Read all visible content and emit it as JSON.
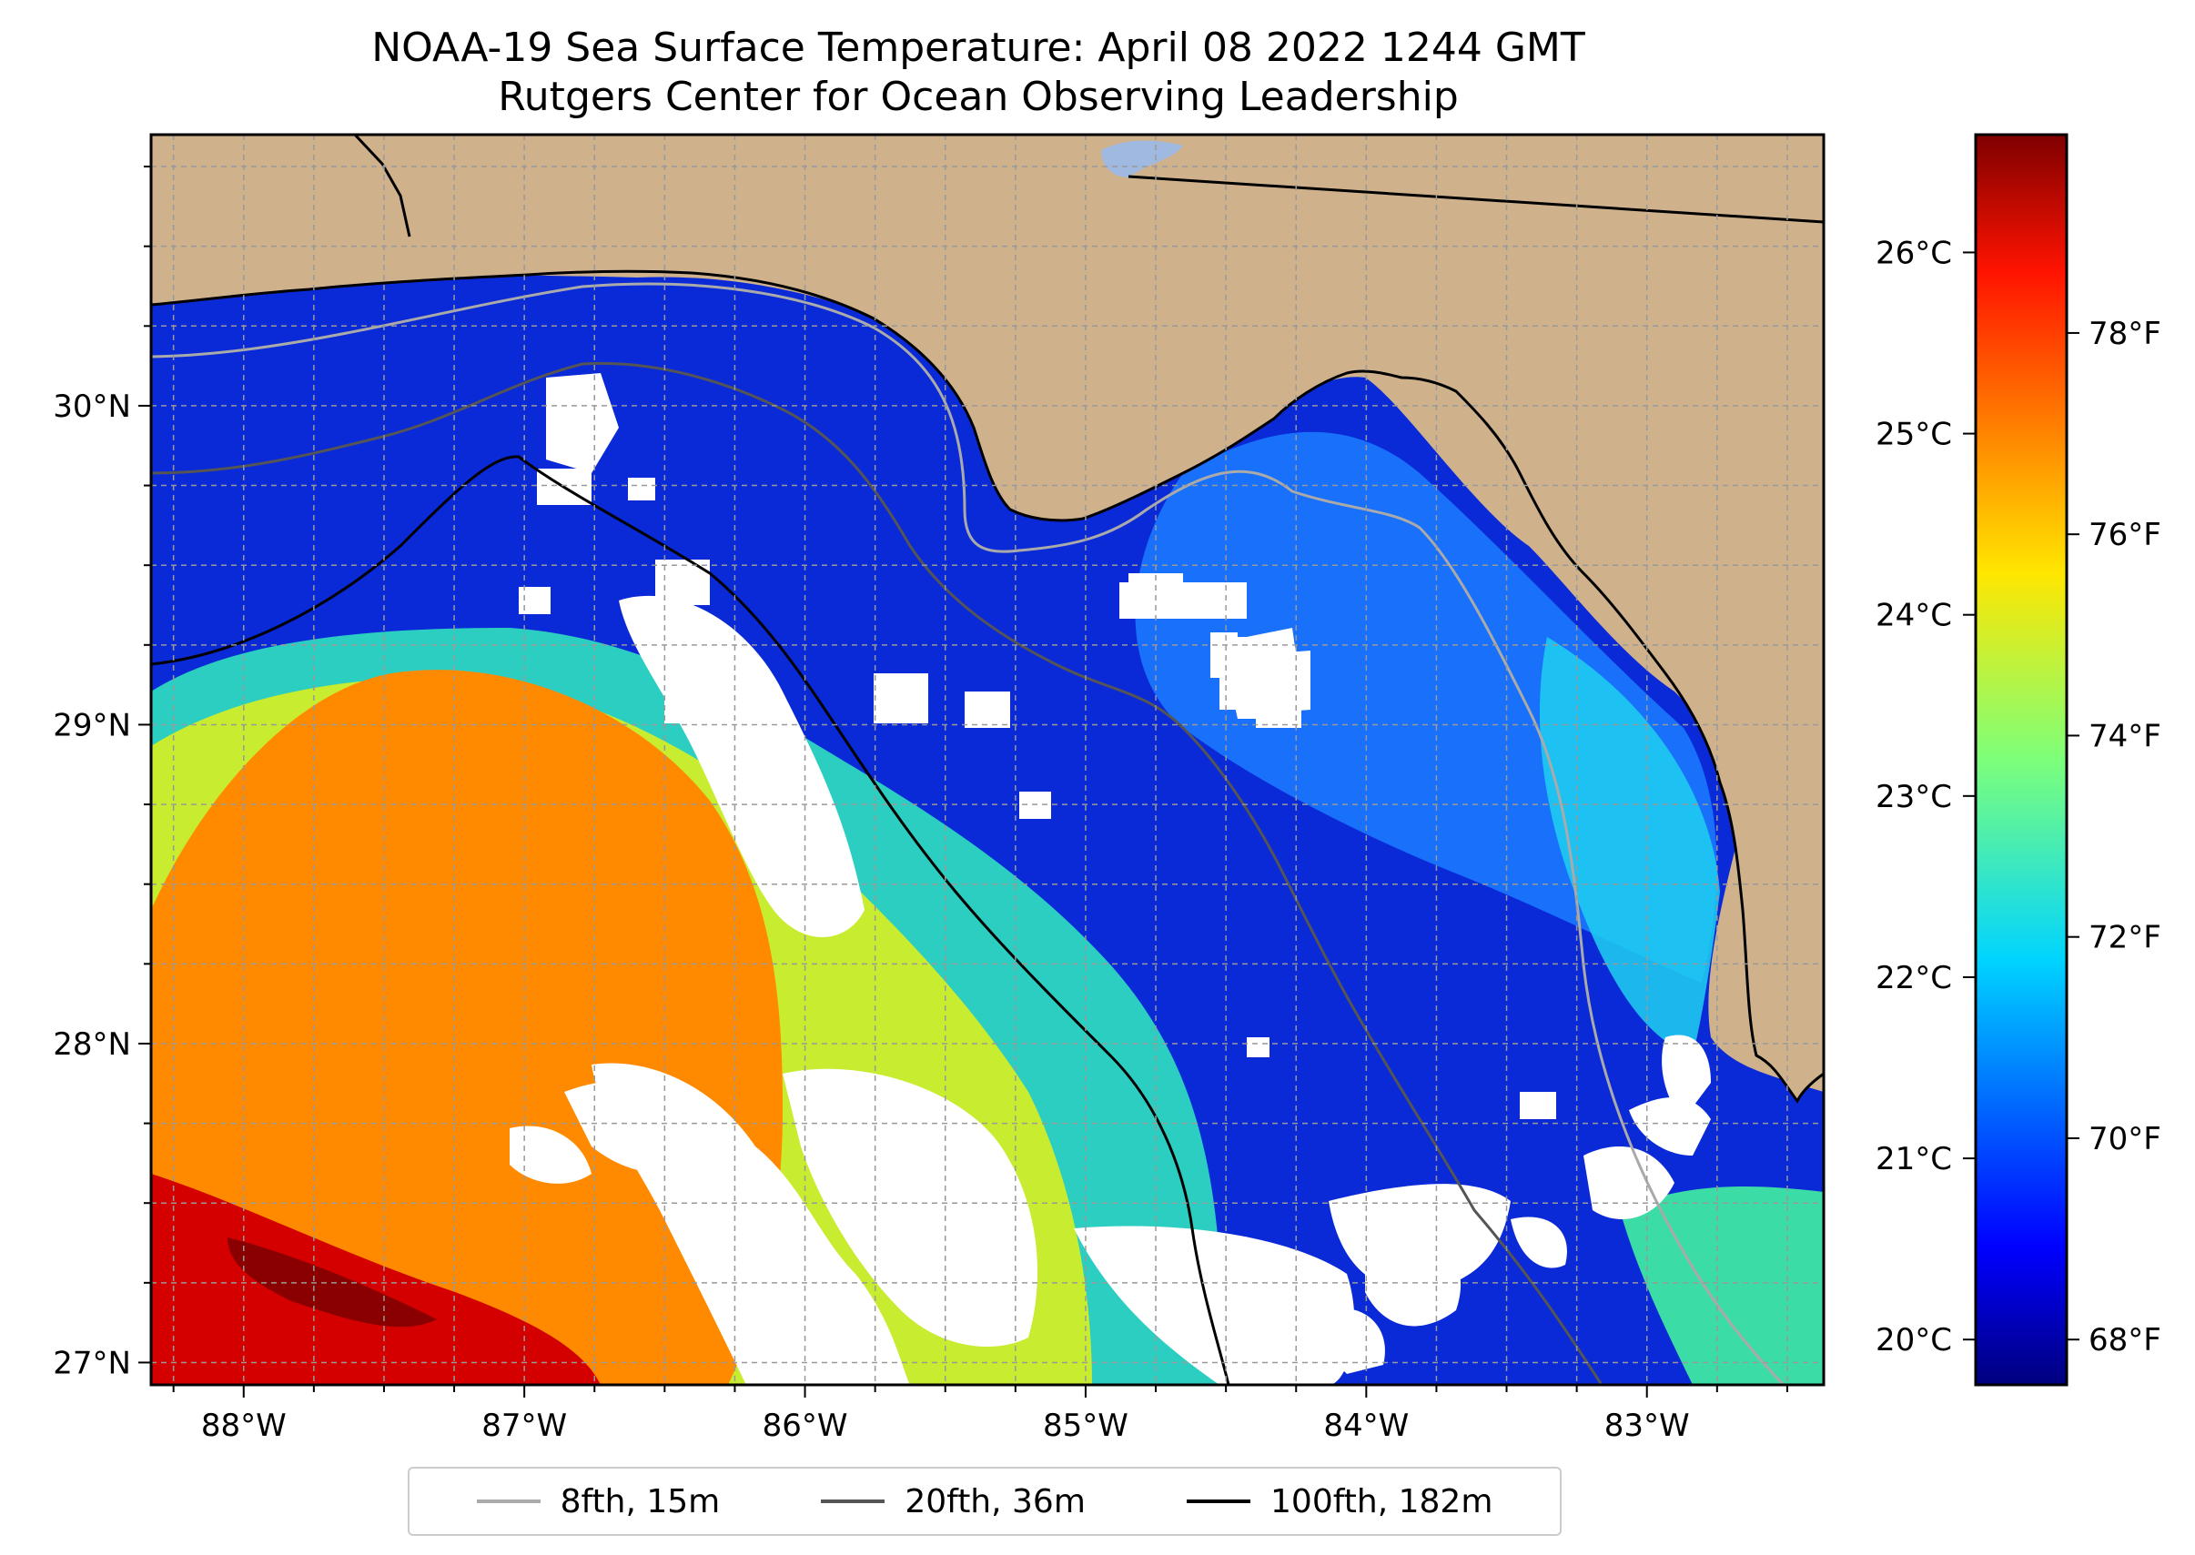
{
  "title": "NOAA-19 Sea Surface Temperature: April 08 2022 1244 GMT",
  "subtitle": "Rutgers Center for Ocean Observing Leadership",
  "map": {
    "lon_range": [
      -88.33,
      -82.37
    ],
    "lat_range": [
      26.93,
      30.85
    ],
    "lon_ticks": [
      {
        "value": -88,
        "label": "88°W"
      },
      {
        "value": -87,
        "label": "87°W"
      },
      {
        "value": -86,
        "label": "86°W"
      },
      {
        "value": -85,
        "label": "85°W"
      },
      {
        "value": -84,
        "label": "84°W"
      },
      {
        "value": -83,
        "label": "83°W"
      }
    ],
    "lat_ticks": [
      {
        "value": 27,
        "label": "27°N"
      },
      {
        "value": 28,
        "label": "28°N"
      },
      {
        "value": 29,
        "label": "29°N"
      },
      {
        "value": 30,
        "label": "30°N"
      }
    ],
    "gridlines": true,
    "land_color": "#cfb18c",
    "cloud_color": "#ffffff"
  },
  "colorbar": {
    "colormap": "jet",
    "celsius_range": [
      19.75,
      26.65
    ],
    "celsius_ticks": [
      {
        "value": 20,
        "label": "20°C"
      },
      {
        "value": 21,
        "label": "21°C"
      },
      {
        "value": 22,
        "label": "22°C"
      },
      {
        "value": 23,
        "label": "23°C"
      },
      {
        "value": 24,
        "label": "24°C"
      },
      {
        "value": 25,
        "label": "25°C"
      },
      {
        "value": 26,
        "label": "26°C"
      }
    ],
    "fahrenheit_ticks": [
      {
        "value": 68,
        "label": "68°F"
      },
      {
        "value": 70,
        "label": "70°F"
      },
      {
        "value": 72,
        "label": "72°F"
      },
      {
        "value": 74,
        "label": "74°F"
      },
      {
        "value": 76,
        "label": "76°F"
      },
      {
        "value": 78,
        "label": "78°F"
      }
    ]
  },
  "legend": {
    "items": [
      {
        "label": "8fth, 15m",
        "color": "#aaaaaa"
      },
      {
        "label": "20fth, 36m",
        "color": "#555555"
      },
      {
        "label": "100fth, 182m",
        "color": "#000000"
      }
    ]
  }
}
